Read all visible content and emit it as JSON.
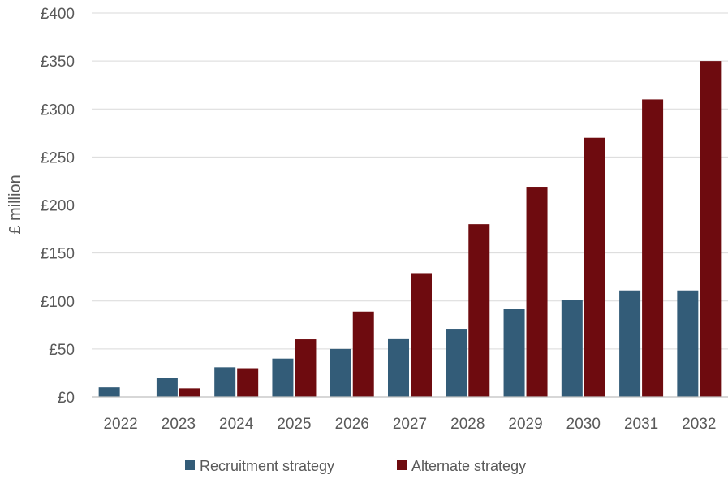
{
  "chart_data": {
    "type": "bar",
    "title": "",
    "xlabel": "",
    "ylabel": "£ million",
    "categories": [
      "2022",
      "2023",
      "2024",
      "2025",
      "2026",
      "2027",
      "2028",
      "2029",
      "2030",
      "2031",
      "2032"
    ],
    "series": [
      {
        "name": "Recruitment strategy",
        "color": "#335c78",
        "values": [
          10,
          20,
          31,
          40,
          50,
          61,
          71,
          92,
          101,
          111,
          111
        ]
      },
      {
        "name": "Alternate strategy",
        "color": "#6e0b0f",
        "values": [
          0,
          9,
          30,
          60,
          89,
          129,
          180,
          219,
          270,
          310,
          350
        ]
      }
    ],
    "ylim": [
      0,
      400
    ],
    "yticks": [
      {
        "value": 0,
        "label": "£0"
      },
      {
        "value": 50,
        "label": "£50"
      },
      {
        "value": 100,
        "label": "£100"
      },
      {
        "value": 150,
        "label": "£150"
      },
      {
        "value": 200,
        "label": "£200"
      },
      {
        "value": 250,
        "label": "£250"
      },
      {
        "value": 300,
        "label": "£300"
      },
      {
        "value": 350,
        "label": "£350"
      },
      {
        "value": 400,
        "label": "£400"
      }
    ],
    "grid": true,
    "legend_position": "bottom"
  }
}
